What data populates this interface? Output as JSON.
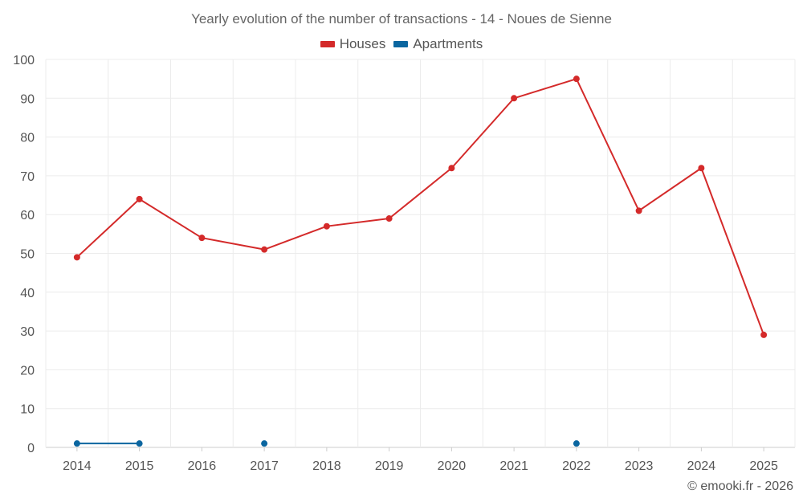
{
  "chart_data": {
    "type": "line",
    "title": "Yearly evolution of the number of transactions - 14 - Noues de Sienne",
    "categories": [
      "2014",
      "2015",
      "2016",
      "2017",
      "2018",
      "2019",
      "2020",
      "2021",
      "2022",
      "2023",
      "2024",
      "2025"
    ],
    "ylim": [
      0,
      100
    ],
    "yticks": [
      0,
      10,
      20,
      30,
      40,
      50,
      60,
      70,
      80,
      90,
      100
    ],
    "grid": true,
    "legend_position": "top-center",
    "series": [
      {
        "name": "Houses",
        "color": "#d42a2a",
        "values": [
          49,
          64,
          54,
          51,
          57,
          59,
          72,
          90,
          95,
          61,
          72,
          29
        ]
      },
      {
        "name": "Apartments",
        "color": "#0b66a0",
        "values": [
          1,
          1,
          null,
          1,
          null,
          null,
          null,
          null,
          1,
          null,
          null,
          null
        ]
      }
    ]
  },
  "credit": "© emooki.fr - 2026"
}
